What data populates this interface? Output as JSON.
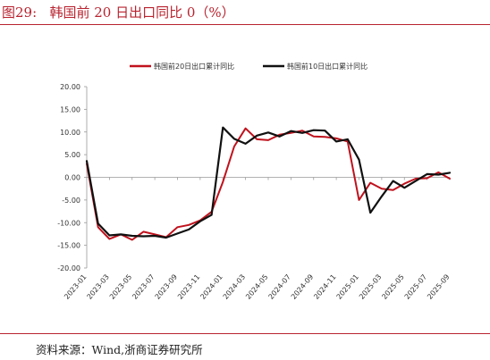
{
  "header": {
    "figure_label": "图29:",
    "figure_title": "韩国前 20 日出口同比 0（%）"
  },
  "footer": {
    "source": "资料来源：Wind,浙商证券研究所"
  },
  "chart_data": {
    "type": "line",
    "title": "",
    "xlabel": "",
    "ylabel": "",
    "ylim": [
      -20,
      20
    ],
    "yticks": [
      "20.00",
      "15.00",
      "10.00",
      "5.00",
      "0.00",
      "-5.00",
      "-10.00",
      "-15.00",
      "-20.00"
    ],
    "legend_position": "top",
    "x": [
      "2023-01",
      "2023-02",
      "2023-03",
      "2023-04",
      "2023-05",
      "2023-06",
      "2023-07",
      "2023-08",
      "2023-09",
      "2023-10",
      "2023-11",
      "2023-12",
      "2024-01",
      "2024-02",
      "2024-03",
      "2024-04",
      "2024-05",
      "2024-06",
      "2024-07",
      "2024-08",
      "2024-09",
      "2024-10",
      "2024-11",
      "2024-12",
      "2025-01",
      "2025-02",
      "2025-03",
      "2025-04",
      "2025-05",
      "2025-06",
      "2025-07",
      "2025-08",
      "2025-09"
    ],
    "xticks": [
      "2023-01",
      "2023-03",
      "2023-05",
      "2023-07",
      "2023-09",
      "2023-11",
      "2024-01",
      "2024-03",
      "2024-05",
      "2024-07",
      "2024-09",
      "2024-11",
      "2025-01",
      "2025-03",
      "2025-05",
      "2025-07",
      "2025-09"
    ],
    "series": [
      {
        "name": "韩国前20日出口累计同比",
        "color": "#c0121d",
        "values": [
          3.0,
          -11.0,
          -13.6,
          -12.6,
          -13.8,
          -12.0,
          -12.6,
          -13.2,
          -11.0,
          -10.5,
          -9.5,
          -7.6,
          -1.0,
          6.8,
          10.8,
          8.4,
          8.2,
          9.4,
          9.8,
          10.3,
          9.0,
          8.9,
          8.6,
          7.9,
          -5.0,
          -1.2,
          -2.5,
          -2.8,
          -1.4,
          -0.3,
          -0.2,
          1.1,
          -0.3
        ]
      },
      {
        "name": "韩国前10日出口累计同比",
        "color": "#111111",
        "values": [
          3.6,
          -10.2,
          -12.8,
          -12.6,
          -12.9,
          -13.0,
          -12.9,
          -13.3,
          -12.4,
          -11.5,
          -9.7,
          -8.3,
          11.0,
          8.5,
          7.4,
          9.2,
          9.9,
          9.0,
          10.2,
          9.8,
          10.4,
          10.3,
          7.9,
          8.4,
          3.9,
          -7.8,
          -4.2,
          -0.8,
          -2.3,
          -0.8,
          0.7,
          0.6,
          1.0
        ]
      }
    ]
  }
}
